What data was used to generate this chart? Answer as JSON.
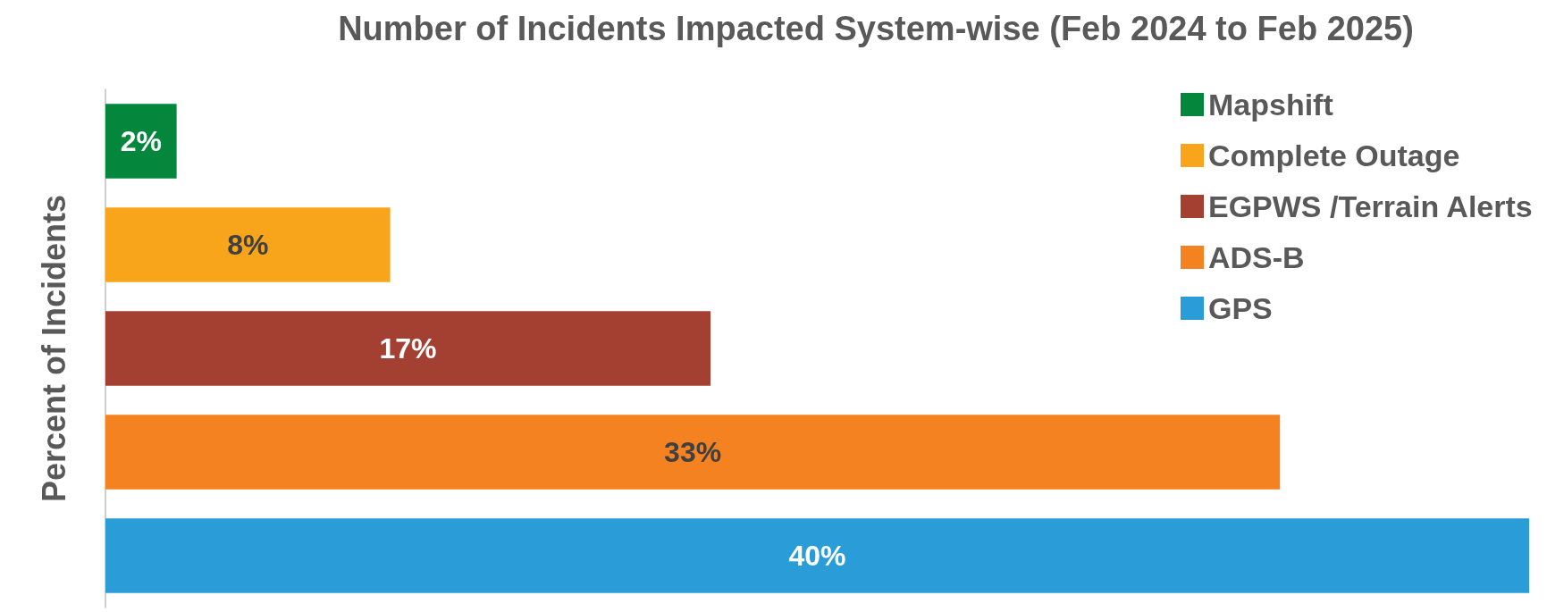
{
  "chart_data": {
    "type": "bar",
    "orientation": "horizontal",
    "stacked": true,
    "title": "Number of Incidents Impacted System-wise (Feb 2024 to Feb 2025)",
    "ylabel": "Percent of Incidents",
    "categories": [
      null,
      null,
      null,
      null,
      null
    ],
    "series": [
      {
        "name": "Mapshift",
        "color": "#04873c",
        "values": [
          2,
          null,
          null,
          null,
          null
        ],
        "value_labels": [
          "2%",
          null,
          null,
          null,
          null
        ]
      },
      {
        "name": "Complete Outage",
        "color": "#f8a51c",
        "values": [
          null,
          8,
          null,
          null,
          null
        ],
        "value_labels": [
          null,
          "8%",
          null,
          null,
          null
        ]
      },
      {
        "name": "EGPWS /Terrain Alerts",
        "color": "#a44032",
        "values": [
          null,
          null,
          17,
          null,
          null
        ],
        "value_labels": [
          null,
          null,
          "17%",
          null,
          null
        ]
      },
      {
        "name": "ADS-B",
        "color": "#f48221",
        "values": [
          null,
          null,
          null,
          33,
          null
        ],
        "value_labels": [
          null,
          null,
          null,
          "33%",
          null
        ]
      },
      {
        "name": "GPS",
        "color": "#2a9dd9",
        "values": [
          null,
          null,
          null,
          null,
          40
        ],
        "value_labels": [
          null,
          null,
          null,
          null,
          "40%"
        ]
      }
    ],
    "tick_labels": false,
    "legend": "top right",
    "grid": false
  }
}
